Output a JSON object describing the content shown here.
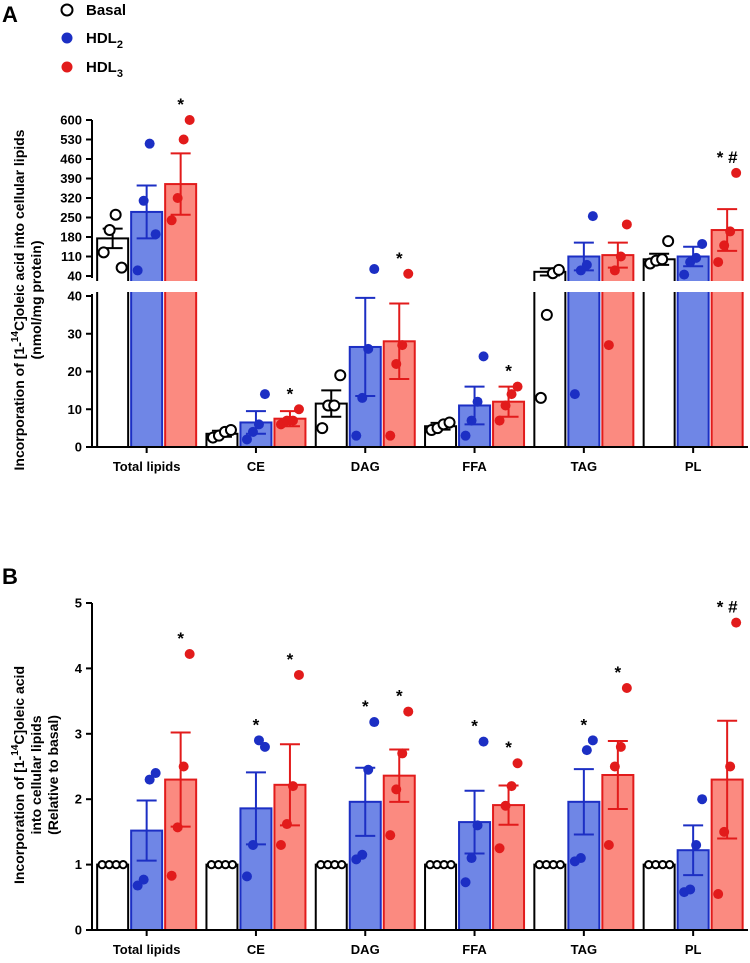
{
  "legend": {
    "items": [
      {
        "key": "basal",
        "label": "Basal",
        "sub": ""
      },
      {
        "key": "hdl2",
        "label": "HDL",
        "sub": "2"
      },
      {
        "key": "hdl3",
        "label": "HDL",
        "sub": "3"
      }
    ]
  },
  "colors": {
    "basal_fill": "#ffffff",
    "basal_edge": "#000000",
    "hdl2_fill": "#6f86e6",
    "hdl2_edge": "#1c2fc4",
    "hdl2_dot": "#1c2fc4",
    "hdl3_fill": "#fb8a80",
    "hdl3_edge": "#e21b1b",
    "hdl3_dot": "#e21b1b"
  },
  "chart_data": [
    {
      "panel": "A",
      "type": "bar",
      "ylabel_line1": "Incorporation of [1-",
      "ylabel_sup": "14",
      "ylabel_line1_rest": "C]oleic acid into cellular lipids",
      "ylabel_line2": "(nmol/mg protein)",
      "categories": [
        "Total lipids",
        "CE",
        "DAG",
        "FFA",
        "TAG",
        "PL"
      ],
      "axis_break": true,
      "lower_segment": {
        "ylim": [
          0,
          40
        ],
        "ticks": [
          "0",
          "10",
          "20",
          "30",
          "40"
        ],
        "tick_values": [
          0,
          10,
          20,
          30,
          40
        ]
      },
      "upper_segment": {
        "ylim": [
          40,
          600
        ],
        "ticks": [
          "40",
          "110",
          "180",
          "250",
          "320",
          "390",
          "460",
          "530",
          "600"
        ],
        "tick_values": [
          40,
          110,
          180,
          250,
          320,
          390,
          460,
          530,
          600
        ]
      },
      "series": [
        {
          "name": "Basal",
          "key": "basal",
          "bars": [
            {
              "mean": 175,
              "sem": 35,
              "points": [
                125,
                205,
                260,
                70
              ]
            },
            {
              "mean": 3.5,
              "sem": 0.8,
              "points": [
                2.5,
                3.0,
                4.0,
                4.5
              ]
            },
            {
              "mean": 11.5,
              "sem": 3.5,
              "points": [
                5,
                11,
                11,
                19
              ]
            },
            {
              "mean": 5.5,
              "sem": 0.9,
              "points": [
                4.5,
                5,
                6,
                6.5
              ]
            },
            {
              "mean": 55,
              "sem": 13,
              "points": [
                13,
                35,
                50,
                62
              ]
            },
            {
              "mean": 100,
              "sem": 20,
              "points": [
                85,
                95,
                100,
                165
              ]
            }
          ]
        },
        {
          "name": "HDL2",
          "key": "hdl2",
          "bars": [
            {
              "mean": 270,
              "sem": 95,
              "points": [
                60,
                310,
                515,
                190
              ]
            },
            {
              "mean": 6.5,
              "sem": 3,
              "points": [
                2,
                4,
                6,
                14
              ]
            },
            {
              "mean": 26.5,
              "sem": 13,
              "points": [
                3,
                13,
                26,
                65
              ]
            },
            {
              "mean": 11,
              "sem": 5,
              "points": [
                3,
                7,
                12,
                24
              ]
            },
            {
              "mean": 110,
              "sem": 50,
              "points": [
                14,
                60,
                80,
                255
              ]
            },
            {
              "mean": 110,
              "sem": 35,
              "points": [
                45,
                90,
                105,
                155
              ]
            }
          ]
        },
        {
          "name": "HDL3",
          "key": "hdl3",
          "bars": [
            {
              "mean": 370,
              "sem": 110,
              "points": [
                240,
                320,
                530,
                600
              ]
            },
            {
              "mean": 7.5,
              "sem": 2,
              "points": [
                6,
                7,
                7,
                10
              ]
            },
            {
              "mean": 28,
              "sem": 10,
              "points": [
                3,
                22,
                27,
                48
              ]
            },
            {
              "mean": 12,
              "sem": 4,
              "points": [
                7,
                11,
                14,
                16
              ]
            },
            {
              "mean": 115,
              "sem": 45,
              "points": [
                27,
                60,
                110,
                225
              ]
            },
            {
              "mean": 205,
              "sem": 75,
              "points": [
                90,
                150,
                200,
                410
              ]
            }
          ]
        }
      ],
      "annotations": [
        {
          "category": 0,
          "series": 2,
          "text": "*"
        },
        {
          "category": 1,
          "series": 2,
          "text": "*"
        },
        {
          "category": 2,
          "series": 2,
          "text": "*"
        },
        {
          "category": 3,
          "series": 2,
          "text": "*"
        },
        {
          "category": 5,
          "series": 2,
          "text": "* #"
        }
      ]
    },
    {
      "panel": "B",
      "type": "bar",
      "ylabel_line1": "Incorporation of [1-",
      "ylabel_sup": "14",
      "ylabel_line1_rest": "C]oleic acid",
      "ylabel_line2": "into cellular lipids",
      "ylabel_line3": "(Relative to basal)",
      "categories": [
        "Total lipids",
        "CE",
        "DAG",
        "FFA",
        "TAG",
        "PL"
      ],
      "ylim": [
        0,
        5
      ],
      "ticks": [
        "0",
        "1",
        "2",
        "3",
        "4",
        "5"
      ],
      "tick_values": [
        0,
        1,
        2,
        3,
        4,
        5
      ],
      "series": [
        {
          "name": "Basal",
          "key": "basal",
          "bars": [
            {
              "mean": 1,
              "sem": 0,
              "points": [
                1,
                1,
                1,
                1
              ]
            },
            {
              "mean": 1,
              "sem": 0,
              "points": [
                1,
                1,
                1,
                1
              ]
            },
            {
              "mean": 1,
              "sem": 0,
              "points": [
                1,
                1,
                1,
                1
              ]
            },
            {
              "mean": 1,
              "sem": 0,
              "points": [
                1,
                1,
                1,
                1
              ]
            },
            {
              "mean": 1,
              "sem": 0,
              "points": [
                1,
                1,
                1,
                1
              ]
            },
            {
              "mean": 1,
              "sem": 0,
              "points": [
                1,
                1,
                1,
                1
              ]
            }
          ]
        },
        {
          "name": "HDL2",
          "key": "hdl2",
          "bars": [
            {
              "mean": 1.52,
              "sem": 0.46,
              "points": [
                0.68,
                0.77,
                2.3,
                2.4
              ]
            },
            {
              "mean": 1.86,
              "sem": 0.55,
              "points": [
                0.82,
                1.3,
                2.9,
                2.8
              ]
            },
            {
              "mean": 1.96,
              "sem": 0.52,
              "points": [
                1.08,
                1.15,
                2.45,
                3.18
              ]
            },
            {
              "mean": 1.65,
              "sem": 0.48,
              "points": [
                0.73,
                1.1,
                1.6,
                2.88
              ]
            },
            {
              "mean": 1.96,
              "sem": 0.5,
              "points": [
                1.05,
                1.1,
                2.75,
                2.9
              ]
            },
            {
              "mean": 1.22,
              "sem": 0.38,
              "points": [
                0.58,
                0.62,
                1.3,
                2.0
              ]
            }
          ]
        },
        {
          "name": "HDL3",
          "key": "hdl3",
          "bars": [
            {
              "mean": 2.3,
              "sem": 0.72,
              "points": [
                0.83,
                1.57,
                2.5,
                4.22
              ]
            },
            {
              "mean": 2.22,
              "sem": 0.62,
              "points": [
                1.3,
                1.62,
                2.2,
                3.9
              ]
            },
            {
              "mean": 2.36,
              "sem": 0.4,
              "points": [
                1.45,
                2.15,
                2.7,
                3.34
              ]
            },
            {
              "mean": 1.91,
              "sem": 0.3,
              "points": [
                1.25,
                1.9,
                2.2,
                2.55
              ]
            },
            {
              "mean": 2.37,
              "sem": 0.52,
              "points": [
                1.3,
                2.5,
                2.8,
                3.7
              ]
            },
            {
              "mean": 2.3,
              "sem": 0.9,
              "points": [
                0.55,
                1.5,
                2.5,
                4.7
              ]
            }
          ]
        }
      ],
      "annotations": [
        {
          "category": 0,
          "series": 2,
          "text": "*"
        },
        {
          "category": 1,
          "series": 1,
          "text": "*"
        },
        {
          "category": 1,
          "series": 2,
          "text": "*"
        },
        {
          "category": 2,
          "series": 1,
          "text": "*"
        },
        {
          "category": 2,
          "series": 2,
          "text": "*"
        },
        {
          "category": 3,
          "series": 1,
          "text": "*"
        },
        {
          "category": 3,
          "series": 2,
          "text": "*"
        },
        {
          "category": 4,
          "series": 1,
          "text": "*"
        },
        {
          "category": 4,
          "series": 2,
          "text": "*"
        },
        {
          "category": 5,
          "series": 2,
          "text": "* #"
        }
      ]
    }
  ]
}
